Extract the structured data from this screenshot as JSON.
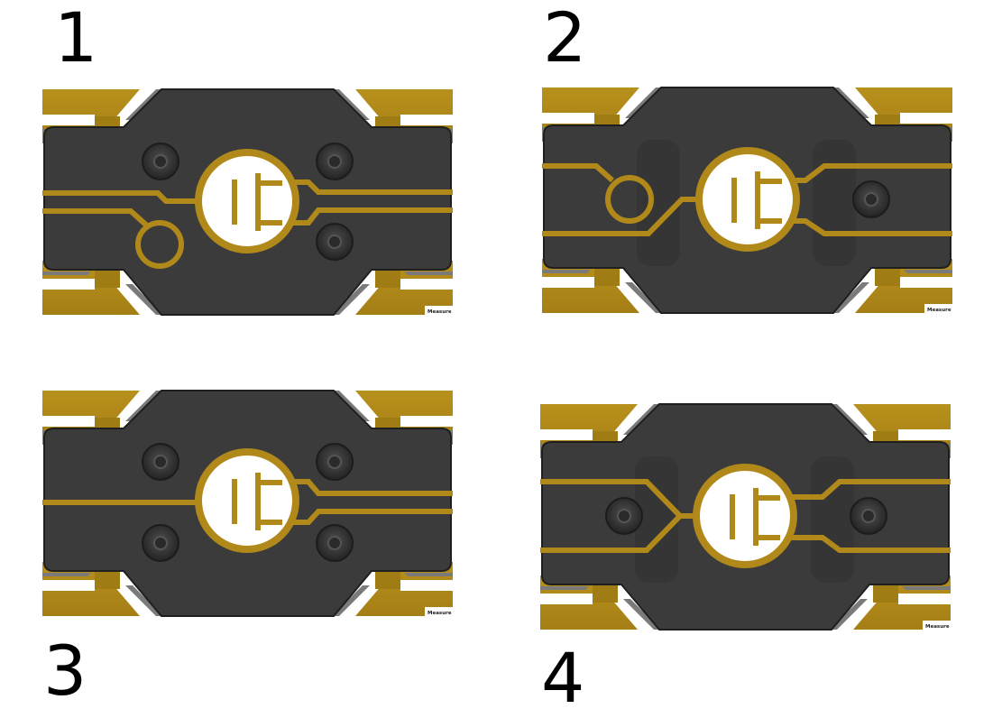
{
  "panels": [
    {
      "number": "1",
      "badge": "Measure"
    },
    {
      "number": "2",
      "badge": "Measure"
    },
    {
      "number": "3",
      "badge": "Measure"
    },
    {
      "number": "4",
      "badge": "Measure"
    }
  ],
  "colors": {
    "gold": "#b0891a",
    "gold_dark": "#8a6a12",
    "body": "#3b3b3b",
    "body_edge": "#222222",
    "rail": "#7a7a7a",
    "symbol_fill": "#ffffff",
    "screw": "#2c2c2c"
  }
}
